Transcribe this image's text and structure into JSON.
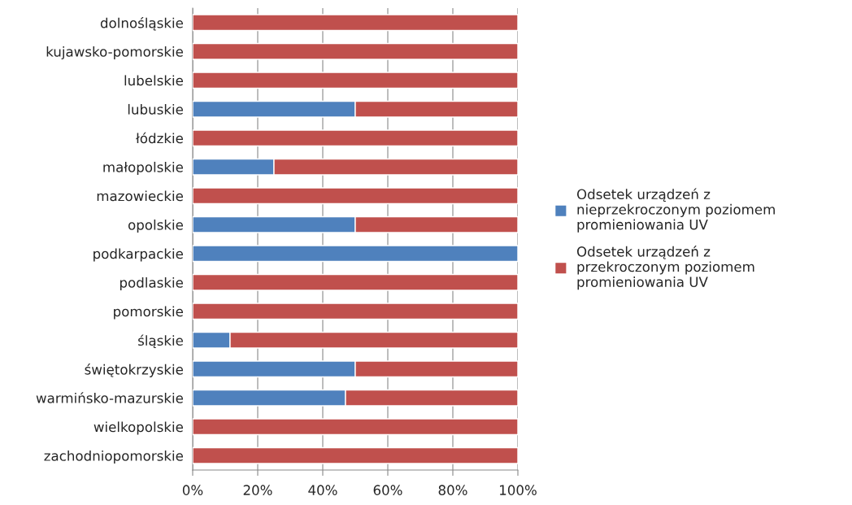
{
  "chart_data": {
    "type": "bar",
    "orientation": "horizontal",
    "stacked": true,
    "categories": [
      "dolnośląskie",
      "kujawsko-pomorskie",
      "lubelskie",
      "lubuskie",
      "łódzkie",
      "małopolskie",
      "mazowieckie",
      "opolskie",
      "podkarpackie",
      "podlaskie",
      "pomorskie",
      "śląskie",
      "świętokrzyskie",
      "warmińsko-mazurskie",
      "wielkopolskie",
      "zachodniopomorskie"
    ],
    "series": [
      {
        "name": "Odsetek urządzeń z nieprzekroczonym poziomem promieniowania UV",
        "color": "#4f81bd",
        "values": [
          0,
          0,
          0,
          50,
          0,
          25,
          0,
          50,
          100,
          0,
          0,
          11.5,
          50,
          47,
          0,
          0
        ]
      },
      {
        "name": "Odsetek urządzeń z przekroczonym poziomem promieniowania UV",
        "color": "#c0504d",
        "values": [
          100,
          100,
          100,
          50,
          100,
          75,
          100,
          50,
          0,
          100,
          100,
          88.5,
          50,
          53,
          100,
          100
        ]
      }
    ],
    "xlim": [
      0,
      100
    ],
    "xticks": [
      {
        "value": 0,
        "label": "0%"
      },
      {
        "value": 20,
        "label": "20%"
      },
      {
        "value": 40,
        "label": "40%"
      },
      {
        "value": 60,
        "label": "60%"
      },
      {
        "value": 80,
        "label": "80%"
      },
      {
        "value": 100,
        "label": "100%"
      }
    ],
    "grid": "x",
    "legend": "right"
  }
}
